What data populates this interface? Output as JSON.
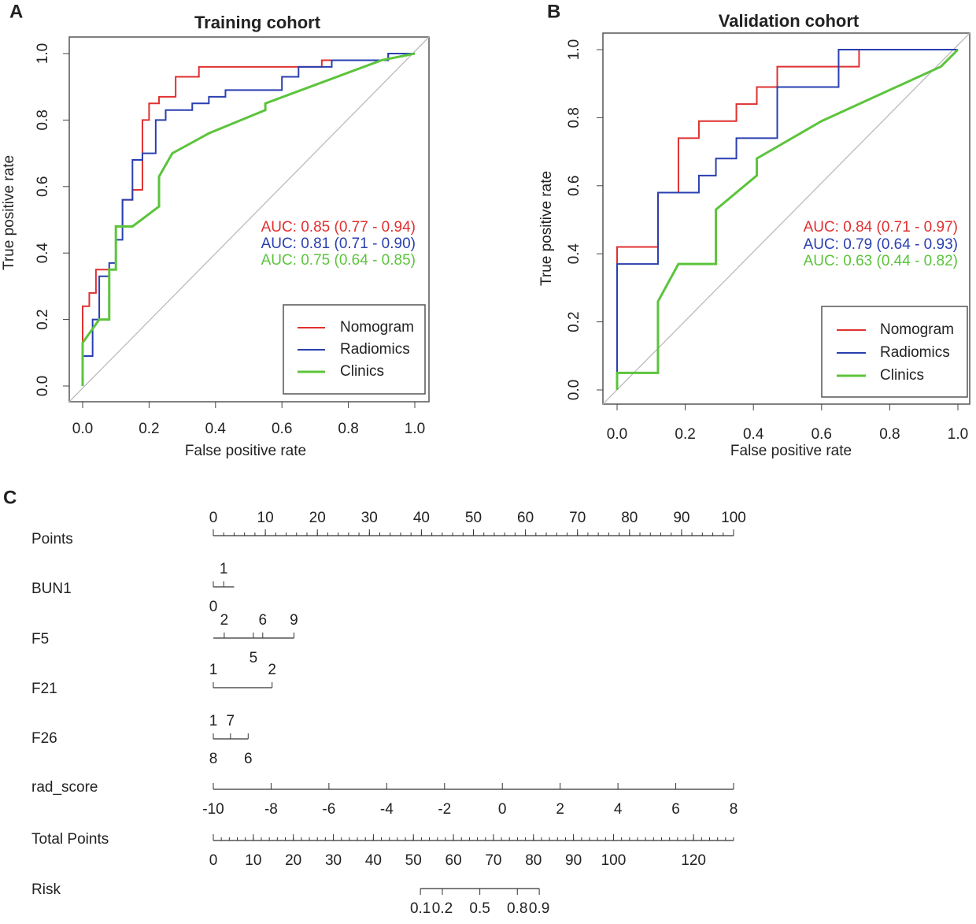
{
  "chart_data": [
    {
      "type": "line",
      "panel_label": "A",
      "title": "Training cohort",
      "x_label": "False  positive rate",
      "y_label": "True positive rate",
      "xlim": [
        0,
        1
      ],
      "ylim": [
        0,
        1
      ],
      "xticks": [
        {
          "value": 0,
          "label": "0.0"
        },
        0.2,
        0.4,
        0.6,
        0.8,
        {
          "value": 1,
          "label": "1.0"
        }
      ],
      "yticks": [
        {
          "value": 0,
          "label": "0.0"
        },
        0.2,
        0.4,
        0.6,
        0.8,
        {
          "value": 1,
          "label": "1.0"
        }
      ],
      "grid": false,
      "diagonal": true,
      "legend": "bottom-right",
      "series": [
        {
          "name": "Nomogram",
          "color": "#e03030",
          "x": [
            0,
            0,
            0.02,
            0.02,
            0.04,
            0.04,
            0.1,
            0.1,
            0.12,
            0.12,
            0.15,
            0.15,
            0.18,
            0.18,
            0.2,
            0.2,
            0.23,
            0.23,
            0.28,
            0.28,
            0.35,
            0.35,
            0.72,
            0.72,
            0.92,
            0.92,
            1
          ],
          "values": [
            0,
            0.24,
            0.24,
            0.28,
            0.28,
            0.35,
            0.35,
            0.48,
            0.48,
            0.56,
            0.56,
            0.59,
            0.59,
            0.8,
            0.8,
            0.85,
            0.85,
            0.87,
            0.87,
            0.93,
            0.93,
            0.96,
            0.96,
            0.98,
            0.98,
            1,
            1
          ]
        },
        {
          "name": "Radiomics",
          "color": "#2a3fb0",
          "x": [
            0,
            0,
            0.03,
            0.03,
            0.05,
            0.05,
            0.08,
            0.08,
            0.1,
            0.1,
            0.12,
            0.12,
            0.15,
            0.15,
            0.18,
            0.18,
            0.22,
            0.22,
            0.25,
            0.25,
            0.33,
            0.33,
            0.38,
            0.38,
            0.43,
            0.43,
            0.6,
            0.6,
            0.65,
            0.65,
            0.75,
            0.75,
            0.92,
            0.92,
            1
          ],
          "values": [
            0,
            0.09,
            0.09,
            0.2,
            0.2,
            0.33,
            0.33,
            0.37,
            0.37,
            0.44,
            0.44,
            0.56,
            0.56,
            0.68,
            0.68,
            0.7,
            0.7,
            0.8,
            0.8,
            0.83,
            0.83,
            0.85,
            0.85,
            0.87,
            0.87,
            0.89,
            0.89,
            0.93,
            0.93,
            0.96,
            0.96,
            0.98,
            0.98,
            1,
            1
          ]
        },
        {
          "name": "Clinics",
          "color": "#5cc43c",
          "x": [
            0,
            0,
            0.05,
            0.08,
            0.08,
            0.1,
            0.1,
            0.15,
            0.23,
            0.23,
            0.27,
            0.38,
            0.55,
            0.55,
            0.9,
            1
          ],
          "values": [
            0,
            0.13,
            0.2,
            0.2,
            0.35,
            0.35,
            0.48,
            0.48,
            0.54,
            0.63,
            0.7,
            0.76,
            0.83,
            0.85,
            0.98,
            1
          ]
        }
      ],
      "annotations": [
        {
          "text": "AUC: 0.85 (0.77 - 0.94)",
          "color": "#e03030"
        },
        {
          "text": "AUC: 0.81 (0.71 - 0.90)",
          "color": "#2a3fb0"
        },
        {
          "text": "AUC: 0.75 (0.64 - 0.85)",
          "color": "#5cc43c"
        }
      ]
    },
    {
      "type": "line",
      "panel_label": "B",
      "title": "Validation cohort",
      "x_label": "False  positive rate",
      "y_label": "True positive rate",
      "xlim": [
        0,
        1
      ],
      "ylim": [
        0,
        1
      ],
      "xticks": [
        {
          "value": 0,
          "label": "0.0"
        },
        0.2,
        0.4,
        0.6,
        0.8,
        {
          "value": 1,
          "label": "1.0"
        }
      ],
      "yticks": [
        {
          "value": 0,
          "label": "0.0"
        },
        0.2,
        0.4,
        0.6,
        0.8,
        {
          "value": 1,
          "label": "1.0"
        }
      ],
      "grid": false,
      "diagonal": true,
      "legend": "bottom-right",
      "series": [
        {
          "name": "Nomogram",
          "color": "#e03030",
          "x": [
            0,
            0,
            0.12,
            0.12,
            0.18,
            0.18,
            0.24,
            0.24,
            0.35,
            0.35,
            0.41,
            0.41,
            0.47,
            0.47,
            0.71,
            0.71,
            1
          ],
          "values": [
            0,
            0.42,
            0.42,
            0.58,
            0.58,
            0.74,
            0.74,
            0.79,
            0.79,
            0.84,
            0.84,
            0.89,
            0.89,
            0.95,
            0.95,
            1,
            1
          ]
        },
        {
          "name": "Radiomics",
          "color": "#2a3fb0",
          "x": [
            0,
            0,
            0.12,
            0.12,
            0.24,
            0.24,
            0.29,
            0.29,
            0.35,
            0.35,
            0.47,
            0.47,
            0.65,
            0.65,
            1
          ],
          "values": [
            0,
            0.37,
            0.37,
            0.58,
            0.58,
            0.63,
            0.63,
            0.68,
            0.68,
            0.74,
            0.74,
            0.89,
            0.89,
            1,
            1
          ]
        },
        {
          "name": "Clinics",
          "color": "#5cc43c",
          "x": [
            0,
            0,
            0.12,
            0.12,
            0.18,
            0.29,
            0.29,
            0.41,
            0.41,
            0.6,
            0.95,
            1
          ],
          "values": [
            0,
            0.05,
            0.05,
            0.26,
            0.37,
            0.37,
            0.53,
            0.63,
            0.68,
            0.79,
            0.95,
            1
          ]
        }
      ],
      "annotations": [
        {
          "text": "AUC: 0.84 (0.71 - 0.97)",
          "color": "#e03030"
        },
        {
          "text": "AUC: 0.79 (0.64 - 0.93)",
          "color": "#2a3fb0"
        },
        {
          "text": "AUC: 0.63 (0.44 - 0.82)",
          "color": "#5cc43c"
        }
      ]
    }
  ],
  "nomogram": {
    "panel_label": "C",
    "points_range": [
      0,
      100
    ],
    "rows": [
      {
        "label": "Points",
        "kind": "scale",
        "range": [
          0,
          100
        ],
        "ticks": [
          0,
          10,
          20,
          30,
          40,
          50,
          60,
          70,
          80,
          90,
          100
        ],
        "minor_step": 2,
        "labels_side": "above"
      },
      {
        "label": "BUN1",
        "kind": "categorical",
        "range": [
          0,
          4
        ],
        "above": [
          {
            "value": 2,
            "label": "1"
          }
        ],
        "below": [
          {
            "value": 0,
            "label": "0"
          }
        ]
      },
      {
        "label": "F5",
        "kind": "categorical",
        "range": [
          0,
          15.5
        ],
        "above": [
          {
            "value": 2.1,
            "label": "2"
          },
          {
            "value": 9.5,
            "label": "6"
          },
          {
            "value": 15.5,
            "label": "9"
          }
        ],
        "below": [
          {
            "value": 7.7,
            "label": "5"
          }
        ]
      },
      {
        "label": "F21",
        "kind": "categorical",
        "range": [
          0,
          11.3
        ],
        "above": [
          {
            "value": 0,
            "label": "1"
          },
          {
            "value": 11.3,
            "label": "2"
          }
        ],
        "below": []
      },
      {
        "label": "F26",
        "kind": "categorical",
        "range": [
          0,
          6.7
        ],
        "above": [
          {
            "value": 0,
            "label": "1"
          },
          {
            "value": 3.3,
            "label": "7"
          }
        ],
        "below": [
          {
            "value": 0,
            "label": "8"
          },
          {
            "value": 6.7,
            "label": "6"
          }
        ]
      },
      {
        "label": "rad_score",
        "kind": "scale",
        "range": [
          -10,
          8
        ],
        "ticks": [
          -10,
          -8,
          -6,
          -4,
          -2,
          0,
          2,
          4,
          6,
          8
        ],
        "labels_side": "below"
      },
      {
        "label": "Total Points",
        "kind": "scale",
        "range": [
          0,
          130
        ],
        "ticks": [
          0,
          10,
          20,
          30,
          40,
          50,
          60,
          70,
          80,
          90,
          100,
          120
        ],
        "minor_step": 2,
        "labels_side": "below"
      },
      {
        "label": "Risk",
        "kind": "risk",
        "logit_midpoint": 66.6,
        "logit_slope": 0.148,
        "ticks": [
          0.1,
          0.2,
          0.5,
          0.8,
          0.9
        ],
        "labels_side": "below"
      }
    ]
  }
}
